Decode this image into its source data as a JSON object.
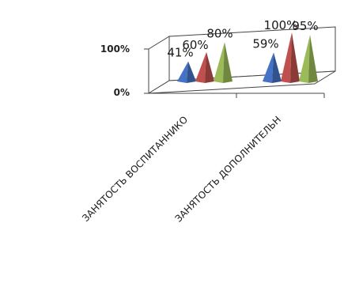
{
  "chart_data": {
    "type": "bar",
    "style": "3d-pyramid",
    "categories": [
      "ЗАНЯТОСТЬ ВОСПИТАННИКО",
      "ЗАНЯТОСТЬ ДОПОЛНИТЕЛЬН"
    ],
    "series": [
      {
        "values": [
          41,
          59
        ],
        "color": "#4472c4"
      },
      {
        "values": [
          60,
          100
        ],
        "color": "#c0504d"
      },
      {
        "values": [
          80,
          95
        ],
        "color": "#9bbb59"
      }
    ],
    "data_labels": [
      [
        "41%",
        "59%"
      ],
      [
        "60%",
        "100%"
      ],
      [
        "80%",
        "95%"
      ]
    ],
    "y_ticks": [
      "0%",
      "100%"
    ],
    "ylim": [
      0,
      100
    ],
    "grid": false
  }
}
